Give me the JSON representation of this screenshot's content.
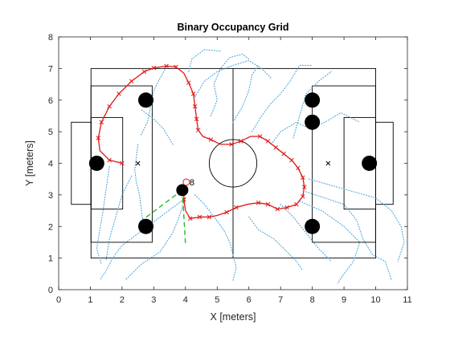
{
  "chart_data": {
    "type": "scatter",
    "title": "Binary Occupancy Grid",
    "xlabel": "X [meters]",
    "ylabel": "Y [meters]",
    "xlim": [
      0,
      11
    ],
    "ylim": [
      0,
      8
    ],
    "xticks": [
      "0",
      "1",
      "2",
      "3",
      "4",
      "5",
      "6",
      "7",
      "8",
      "9",
      "10",
      "11"
    ],
    "yticks": [
      "0",
      "1",
      "2",
      "3",
      "4",
      "5",
      "6",
      "7",
      "8"
    ],
    "grid": false,
    "field": {
      "outline": [
        [
          1.02,
          1.0
        ],
        [
          10.0,
          7.0
        ]
      ],
      "halfway_x": 5.5,
      "center_circle": {
        "x": 5.5,
        "y": 4.0,
        "r": 0.75
      },
      "left_penalty_box": [
        [
          1.02,
          1.5
        ],
        [
          2.95,
          6.45
        ]
      ],
      "left_goal_box": [
        [
          1.02,
          2.55
        ],
        [
          2.02,
          5.45
        ]
      ],
      "left_goal": [
        [
          0.4,
          2.7
        ],
        [
          1.02,
          5.3
        ]
      ],
      "right_penalty_box": [
        [
          8.0,
          1.5
        ],
        [
          10.0,
          6.45
        ]
      ],
      "right_goal_box": [
        [
          9.0,
          2.55
        ],
        [
          10.0,
          5.45
        ]
      ],
      "right_goal": [
        [
          10.0,
          2.7
        ],
        [
          10.55,
          5.3
        ]
      ],
      "spots": [
        [
          2.5,
          4.0
        ],
        [
          8.5,
          4.0
        ]
      ]
    },
    "obstacles": [
      [
        1.2,
        4.0
      ],
      [
        2.75,
        6.0
      ],
      [
        2.75,
        2.0
      ],
      [
        8.0,
        6.0
      ],
      [
        8.0,
        5.3
      ],
      [
        8.0,
        2.0
      ],
      [
        9.8,
        4.0
      ]
    ],
    "robot": {
      "x": 3.9,
      "y": 3.15,
      "label": "8"
    },
    "path": [
      [
        2.0,
        4.0
      ],
      [
        1.6,
        4.1
      ],
      [
        1.3,
        4.4
      ],
      [
        1.25,
        4.8
      ],
      [
        1.35,
        5.3
      ],
      [
        1.6,
        5.8
      ],
      [
        1.9,
        6.2
      ],
      [
        2.3,
        6.6
      ],
      [
        2.7,
        6.9
      ],
      [
        3.0,
        7.02
      ],
      [
        3.4,
        7.08
      ],
      [
        3.7,
        7.05
      ],
      [
        3.95,
        6.85
      ],
      [
        4.1,
        6.55
      ],
      [
        4.25,
        6.2
      ],
      [
        4.3,
        5.8
      ],
      [
        4.35,
        5.4
      ],
      [
        4.4,
        5.05
      ],
      [
        4.55,
        4.85
      ],
      [
        4.8,
        4.75
      ],
      [
        5.1,
        4.6
      ],
      [
        5.45,
        4.6
      ],
      [
        5.75,
        4.7
      ],
      [
        6.05,
        4.85
      ],
      [
        6.35,
        4.85
      ],
      [
        6.6,
        4.7
      ],
      [
        6.85,
        4.5
      ],
      [
        7.1,
        4.3
      ],
      [
        7.35,
        4.1
      ],
      [
        7.55,
        3.85
      ],
      [
        7.7,
        3.55
      ],
      [
        7.75,
        3.25
      ],
      [
        7.7,
        2.95
      ],
      [
        7.5,
        2.7
      ],
      [
        7.2,
        2.6
      ],
      [
        6.9,
        2.55
      ],
      [
        6.6,
        2.7
      ],
      [
        6.3,
        2.75
      ],
      [
        5.95,
        2.7
      ],
      [
        5.6,
        2.6
      ],
      [
        5.3,
        2.45
      ],
      [
        5.0,
        2.35
      ],
      [
        4.75,
        2.3
      ],
      [
        4.45,
        2.3
      ],
      [
        4.15,
        2.25
      ],
      [
        4.0,
        2.5
      ],
      [
        3.95,
        2.85
      ],
      [
        3.95,
        3.15
      ]
    ],
    "path_markers": [
      [
        2.0,
        4.0
      ],
      [
        1.6,
        4.1
      ],
      [
        1.25,
        4.8
      ],
      [
        1.35,
        5.3
      ],
      [
        1.6,
        5.8
      ],
      [
        1.9,
        6.2
      ],
      [
        2.3,
        6.6
      ],
      [
        2.7,
        6.9
      ],
      [
        3.0,
        7.02
      ],
      [
        3.4,
        7.08
      ],
      [
        3.7,
        7.05
      ],
      [
        4.1,
        6.55
      ],
      [
        4.25,
        6.2
      ],
      [
        4.3,
        5.8
      ],
      [
        4.35,
        5.4
      ],
      [
        4.4,
        5.05
      ],
      [
        4.8,
        4.75
      ],
      [
        5.45,
        4.6
      ],
      [
        5.75,
        4.7
      ],
      [
        6.35,
        4.85
      ],
      [
        6.6,
        4.7
      ],
      [
        6.85,
        4.5
      ],
      [
        7.1,
        4.3
      ],
      [
        7.35,
        4.1
      ],
      [
        7.55,
        3.85
      ],
      [
        7.7,
        3.55
      ],
      [
        7.75,
        3.25
      ],
      [
        7.7,
        2.95
      ],
      [
        7.5,
        2.7
      ],
      [
        7.2,
        2.6
      ],
      [
        6.9,
        2.55
      ],
      [
        6.6,
        2.7
      ],
      [
        6.3,
        2.75
      ],
      [
        5.6,
        2.6
      ],
      [
        5.3,
        2.45
      ],
      [
        4.75,
        2.3
      ],
      [
        4.45,
        2.3
      ],
      [
        4.15,
        2.25
      ],
      [
        3.95,
        2.85
      ],
      [
        3.95,
        3.15
      ]
    ],
    "sensor_lines": [
      [
        [
          3.9,
          3.15
        ],
        [
          2.5,
          2.1
        ]
      ],
      [
        [
          3.9,
          3.15
        ],
        [
          4.0,
          1.45
        ]
      ]
    ],
    "lidar_traces": [
      [
        [
          2.5,
          4.6
        ],
        [
          2.45,
          4.2
        ],
        [
          2.4,
          3.8
        ],
        [
          2.45,
          3.4
        ],
        [
          2.55,
          3.0
        ],
        [
          2.6,
          2.6
        ],
        [
          2.65,
          2.2
        ],
        [
          2.6,
          1.8
        ]
      ],
      [
        [
          4.0,
          2.9
        ],
        [
          3.6,
          2.6
        ],
        [
          3.2,
          2.3
        ],
        [
          2.8,
          2.0
        ],
        [
          2.4,
          1.7
        ],
        [
          2.0,
          1.4
        ],
        [
          1.7,
          1.0
        ],
        [
          1.5,
          0.6
        ],
        [
          1.3,
          0.3
        ]
      ],
      [
        [
          4.0,
          2.9
        ],
        [
          3.8,
          2.3
        ],
        [
          3.6,
          1.8
        ],
        [
          3.2,
          1.2
        ],
        [
          2.6,
          0.8
        ],
        [
          2.1,
          0.3
        ]
      ],
      [
        [
          2.6,
          4.9
        ],
        [
          2.8,
          5.3
        ],
        [
          2.9,
          5.8
        ],
        [
          3.0,
          6.3
        ],
        [
          3.2,
          6.7
        ],
        [
          3.4,
          7.05
        ]
      ],
      [
        [
          4.3,
          3.0
        ],
        [
          4.6,
          2.7
        ],
        [
          4.9,
          2.3
        ],
        [
          5.2,
          1.9
        ],
        [
          5.4,
          1.5
        ],
        [
          5.5,
          1.1
        ],
        [
          5.6,
          0.7
        ],
        [
          5.5,
          0.3
        ]
      ],
      [
        [
          4.8,
          5.5
        ],
        [
          5.0,
          6.0
        ],
        [
          4.9,
          6.5
        ],
        [
          5.1,
          7.0
        ],
        [
          5.4,
          7.35
        ],
        [
          5.8,
          7.45
        ],
        [
          6.0,
          7.3
        ]
      ],
      [
        [
          4.3,
          6.1
        ],
        [
          4.6,
          6.6
        ],
        [
          5.0,
          6.9
        ],
        [
          5.5,
          7.1
        ],
        [
          6.0,
          7.25
        ],
        [
          6.4,
          7.0
        ],
        [
          6.7,
          6.7
        ]
      ],
      [
        [
          5.5,
          5.3
        ],
        [
          5.8,
          5.8
        ],
        [
          6.0,
          6.3
        ],
        [
          6.1,
          6.8
        ],
        [
          6.3,
          7.1
        ]
      ],
      [
        [
          6.1,
          5.0
        ],
        [
          6.4,
          5.5
        ],
        [
          6.7,
          5.9
        ],
        [
          7.0,
          6.2
        ],
        [
          7.3,
          6.6
        ],
        [
          7.6,
          7.1
        ],
        [
          8.0,
          7.1
        ]
      ],
      [
        [
          6.7,
          4.6
        ],
        [
          7.0,
          5.0
        ],
        [
          7.5,
          5.3
        ],
        [
          7.9,
          5.1
        ],
        [
          8.4,
          5.3
        ],
        [
          8.9,
          5.6
        ],
        [
          9.5,
          5.3
        ]
      ],
      [
        [
          7.4,
          4.8
        ],
        [
          7.6,
          5.5
        ],
        [
          7.8,
          6.2
        ],
        [
          8.2,
          6.6
        ],
        [
          8.6,
          6.9
        ]
      ],
      [
        [
          6.0,
          2.3
        ],
        [
          6.3,
          1.9
        ],
        [
          6.8,
          1.6
        ],
        [
          7.2,
          1.2
        ],
        [
          7.5,
          0.9
        ],
        [
          7.7,
          0.6
        ]
      ],
      [
        [
          7.0,
          2.7
        ],
        [
          7.4,
          2.3
        ],
        [
          7.8,
          1.8
        ],
        [
          8.2,
          1.3
        ],
        [
          8.6,
          0.9
        ]
      ],
      [
        [
          7.8,
          3.1
        ],
        [
          8.4,
          2.9
        ],
        [
          9.0,
          2.7
        ],
        [
          9.4,
          2.2
        ],
        [
          9.6,
          1.6
        ],
        [
          9.9,
          1.1
        ],
        [
          10.3,
          0.9
        ],
        [
          10.5,
          0.3
        ]
      ],
      [
        [
          7.6,
          2.8
        ],
        [
          8.3,
          2.5
        ],
        [
          9.0,
          2.0
        ],
        [
          9.5,
          1.5
        ],
        [
          9.3,
          0.9
        ],
        [
          9.0,
          0.5
        ],
        [
          8.8,
          0.2
        ]
      ],
      [
        [
          7.9,
          3.5
        ],
        [
          8.6,
          3.3
        ],
        [
          9.3,
          3.1
        ],
        [
          10.0,
          2.9
        ],
        [
          10.5,
          2.5
        ],
        [
          10.8,
          2.0
        ],
        [
          10.9,
          1.5
        ],
        [
          10.7,
          0.9
        ]
      ],
      [
        [
          4.1,
          6.9
        ],
        [
          4.2,
          7.3
        ],
        [
          4.6,
          7.6
        ],
        [
          5.1,
          7.55
        ]
      ],
      [
        [
          1.6,
          3.9
        ],
        [
          1.5,
          3.2
        ],
        [
          1.4,
          2.5
        ],
        [
          1.3,
          1.9
        ],
        [
          1.2,
          1.3
        ],
        [
          1.35,
          0.8
        ]
      ],
      [
        [
          2.3,
          3.6
        ],
        [
          2.0,
          3.0
        ],
        [
          1.8,
          2.3
        ],
        [
          1.6,
          1.6
        ],
        [
          1.5,
          0.95
        ]
      ],
      [
        [
          3.6,
          4.6
        ],
        [
          3.3,
          5.1
        ],
        [
          3.0,
          5.4
        ],
        [
          2.6,
          5.7
        ]
      ]
    ]
  }
}
